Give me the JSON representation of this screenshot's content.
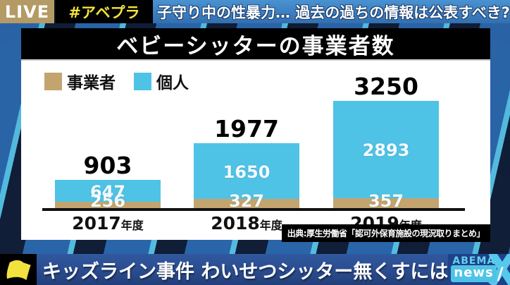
{
  "top_bar": {
    "live_label": "LIVE",
    "hashtag": "#アベプラ",
    "headline": "子守り中の性暴力… 過去の過ちの情報は公表すべき?"
  },
  "chart_panel": {
    "title": "ベビーシッターの事業者数",
    "source": "出典:厚生労働省「認可外保育施設の現況取りまとめ」"
  },
  "chart_data": {
    "type": "bar",
    "stacked": true,
    "title": "ベビーシッターの事業者数",
    "categories": [
      "2017年度",
      "2018年度",
      "2019年度"
    ],
    "category_years": [
      "2017",
      "2018",
      "2019"
    ],
    "category_suffix": "年度",
    "series": [
      {
        "name": "事業者",
        "color": "#c3a46f",
        "values": [
          256,
          327,
          357
        ]
      },
      {
        "name": "個人",
        "color": "#4fc3e6",
        "values": [
          647,
          1650,
          2893
        ]
      }
    ],
    "totals": [
      903,
      1977,
      3250
    ],
    "legend_position": "top-left",
    "grid": false,
    "ylim": [
      0,
      3400
    ]
  },
  "bottom_bar": {
    "headline": "キッズライン事件 わいせつシッター無くすには",
    "logo_line1": "ABEMA",
    "logo_line2": "news",
    "logo_slash": "/"
  },
  "colors": {
    "live_bg": "#b49a64",
    "hashtag_text": "#f2e23c",
    "headline_bg": "#3c7fc0",
    "panel_bg": "#ffffff",
    "title_band_bg": "#000000",
    "business_tan": "#c3a46f",
    "individual_blue": "#4fc3e6",
    "bottom_bar_bg": "#2b4d90",
    "abema_light_blue": "#56c8ec",
    "abema_dark_blue": "#1d4289",
    "flag_yellow": "#f3e13e"
  }
}
